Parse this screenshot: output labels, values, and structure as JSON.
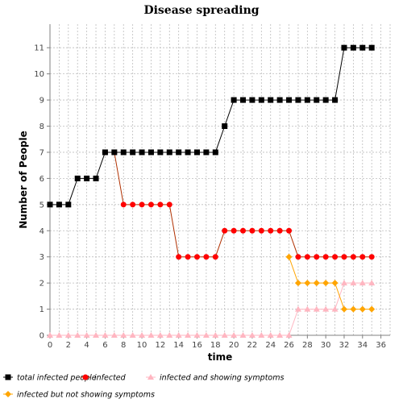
{
  "chart_data": {
    "type": "line",
    "title": "Disease spreading",
    "xlabel": "time",
    "ylabel": "Number of People",
    "xlim": [
      0,
      37
    ],
    "ylim": [
      0,
      11.9
    ],
    "xticks": [
      0,
      2,
      4,
      6,
      8,
      10,
      12,
      14,
      16,
      18,
      20,
      22,
      24,
      26,
      28,
      30,
      32,
      34,
      36
    ],
    "yticks": [
      0,
      1,
      2,
      3,
      4,
      5,
      6,
      7,
      8,
      9,
      10,
      11
    ],
    "grid": true,
    "legend_position": "bottom",
    "x": [
      0,
      1,
      2,
      3,
      4,
      5,
      6,
      7,
      8,
      9,
      10,
      11,
      12,
      13,
      14,
      15,
      16,
      17,
      18,
      19,
      20,
      21,
      22,
      23,
      24,
      25,
      26,
      27,
      28,
      29,
      30,
      31,
      32,
      33,
      34,
      35
    ],
    "series": [
      {
        "name": "total infected people",
        "color": "#000000",
        "marker": "square",
        "values": [
          5,
          5,
          5,
          6,
          6,
          6,
          7,
          7,
          7,
          7,
          7,
          7,
          7,
          7,
          7,
          7,
          7,
          7,
          7,
          8,
          9,
          9,
          9,
          9,
          9,
          9,
          9,
          9,
          9,
          9,
          9,
          9,
          11,
          11,
          11,
          11
        ]
      },
      {
        "name": "infected",
        "color": "#ff0000",
        "line_color": "#b03000",
        "marker": "circle",
        "values": [
          null,
          null,
          null,
          null,
          null,
          null,
          7,
          7,
          5,
          5,
          5,
          5,
          5,
          5,
          3,
          3,
          3,
          3,
          3,
          4,
          4,
          4,
          4,
          4,
          4,
          4,
          4,
          3,
          3,
          3,
          3,
          3,
          3,
          3,
          3,
          3
        ]
      },
      {
        "name": "infected and showing symptoms",
        "color": "#ffb6c1",
        "marker": "triangle",
        "values": [
          0,
          0,
          0,
          0,
          0,
          0,
          0,
          0,
          0,
          0,
          0,
          0,
          0,
          0,
          0,
          0,
          0,
          0,
          0,
          0,
          0,
          0,
          0,
          0,
          0,
          0,
          0,
          1,
          1,
          1,
          1,
          1,
          2,
          2,
          2,
          2
        ]
      },
      {
        "name": "infected but not showing symptoms",
        "color": "#ffa500",
        "marker": "diamond",
        "values": [
          null,
          null,
          null,
          null,
          null,
          null,
          null,
          null,
          null,
          null,
          null,
          null,
          null,
          null,
          null,
          null,
          null,
          null,
          null,
          null,
          null,
          null,
          null,
          null,
          null,
          null,
          3,
          2,
          2,
          2,
          2,
          2,
          1,
          1,
          1,
          1
        ]
      }
    ]
  }
}
